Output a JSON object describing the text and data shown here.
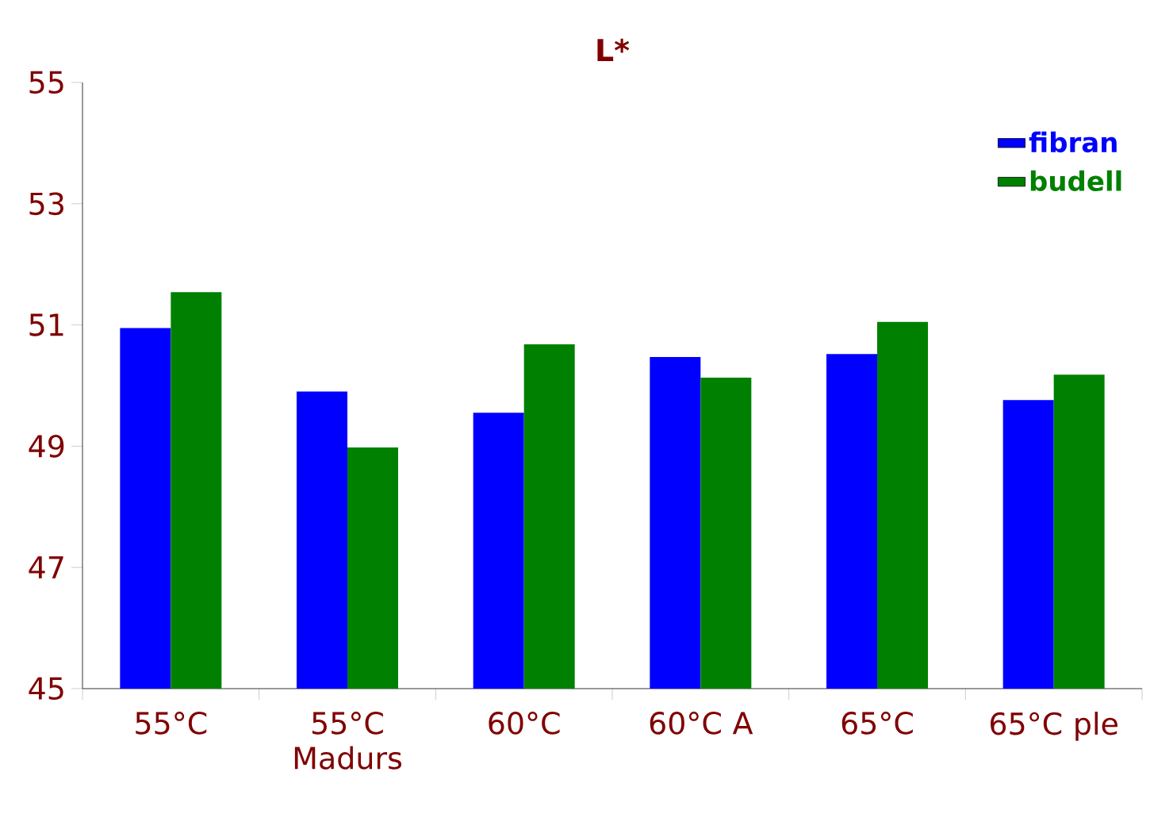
{
  "chart_data": {
    "type": "bar",
    "title": "L*",
    "categories": [
      "55°C",
      "55°C Madurs",
      "60°C",
      "60°C A",
      "65°C",
      "65°C  ple"
    ],
    "series": [
      {
        "name": "fibran",
        "color": "#0000ff",
        "values": [
          50.95,
          49.9,
          49.55,
          50.47,
          50.52,
          49.76
        ]
      },
      {
        "name": "budell",
        "color": "#008000",
        "values": [
          51.54,
          48.98,
          50.68,
          50.13,
          51.05,
          50.18
        ]
      }
    ],
    "ylim": [
      45,
      55
    ],
    "yticks": [
      45,
      47,
      49,
      51,
      53,
      55
    ],
    "grid": false,
    "legend": "top right"
  }
}
